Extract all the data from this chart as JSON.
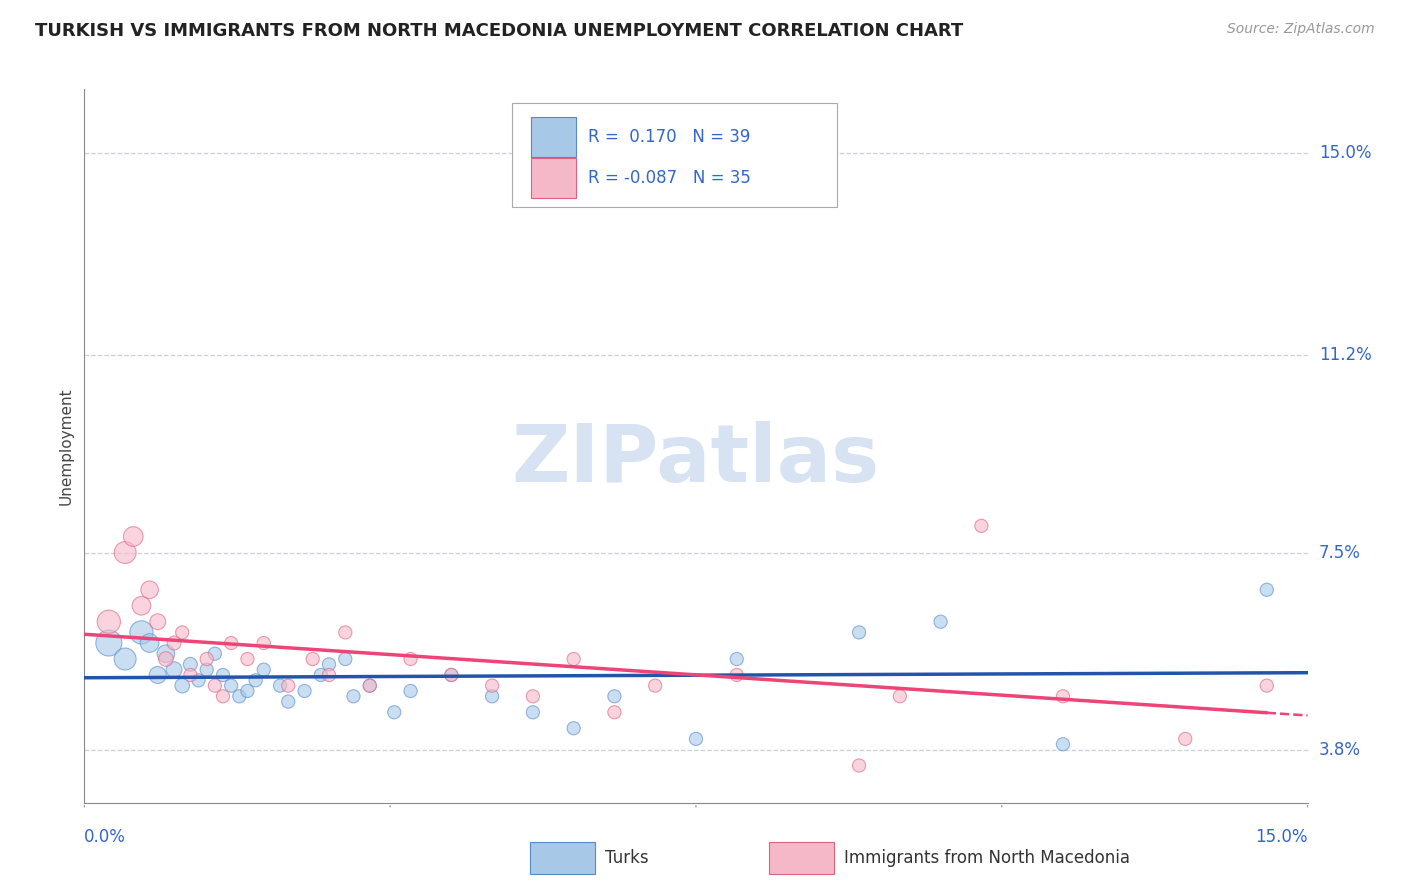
{
  "title": "TURKISH VS IMMIGRANTS FROM NORTH MACEDONIA UNEMPLOYMENT CORRELATION CHART",
  "source": "Source: ZipAtlas.com",
  "ylabel": "Unemployment",
  "y_tick_labels": [
    "3.8%",
    "7.5%",
    "11.2%",
    "15.0%"
  ],
  "y_tick_values": [
    3.8,
    7.5,
    11.2,
    15.0
  ],
  "xlim": [
    0.0,
    15.0
  ],
  "ylim": [
    2.8,
    16.2
  ],
  "legend_r_blue": " 0.170",
  "legend_n_blue": "39",
  "legend_r_pink": "-0.087",
  "legend_n_pink": "35",
  "blue_scatter_color": "#a8c8e8",
  "blue_edge_color": "#5588cc",
  "pink_scatter_color": "#f5b8c8",
  "pink_edge_color": "#e06080",
  "line_blue_color": "#2255aa",
  "line_pink_color": "#ee4477",
  "watermark_color": "#d0ddf0",
  "turks_scatter": [
    [
      0.3,
      5.8
    ],
    [
      0.5,
      5.5
    ],
    [
      0.7,
      6.0
    ],
    [
      0.8,
      5.8
    ],
    [
      0.9,
      5.2
    ],
    [
      1.0,
      5.6
    ],
    [
      1.1,
      5.3
    ],
    [
      1.2,
      5.0
    ],
    [
      1.3,
      5.4
    ],
    [
      1.4,
      5.1
    ],
    [
      1.5,
      5.3
    ],
    [
      1.6,
      5.6
    ],
    [
      1.7,
      5.2
    ],
    [
      1.8,
      5.0
    ],
    [
      1.9,
      4.8
    ],
    [
      2.0,
      4.9
    ],
    [
      2.1,
      5.1
    ],
    [
      2.2,
      5.3
    ],
    [
      2.4,
      5.0
    ],
    [
      2.5,
      4.7
    ],
    [
      2.7,
      4.9
    ],
    [
      2.9,
      5.2
    ],
    [
      3.0,
      5.4
    ],
    [
      3.2,
      5.5
    ],
    [
      3.3,
      4.8
    ],
    [
      3.5,
      5.0
    ],
    [
      3.8,
      4.5
    ],
    [
      4.0,
      4.9
    ],
    [
      4.5,
      5.2
    ],
    [
      5.0,
      4.8
    ],
    [
      5.5,
      4.5
    ],
    [
      6.0,
      4.2
    ],
    [
      6.5,
      4.8
    ],
    [
      7.5,
      4.0
    ],
    [
      8.0,
      5.5
    ],
    [
      9.5,
      6.0
    ],
    [
      10.5,
      6.2
    ],
    [
      12.0,
      3.9
    ],
    [
      14.5,
      6.8
    ]
  ],
  "turks_sizes": [
    350,
    250,
    280,
    180,
    150,
    160,
    130,
    110,
    100,
    90,
    90,
    90,
    90,
    90,
    90,
    90,
    90,
    90,
    90,
    90,
    90,
    90,
    90,
    90,
    90,
    90,
    90,
    90,
    90,
    90,
    90,
    90,
    90,
    90,
    90,
    90,
    90,
    90,
    90
  ],
  "nmacedonia_scatter": [
    [
      0.3,
      6.2
    ],
    [
      0.5,
      7.5
    ],
    [
      0.6,
      7.8
    ],
    [
      0.7,
      6.5
    ],
    [
      0.8,
      6.8
    ],
    [
      0.9,
      6.2
    ],
    [
      1.0,
      5.5
    ],
    [
      1.1,
      5.8
    ],
    [
      1.2,
      6.0
    ],
    [
      1.3,
      5.2
    ],
    [
      1.5,
      5.5
    ],
    [
      1.6,
      5.0
    ],
    [
      1.7,
      4.8
    ],
    [
      1.8,
      5.8
    ],
    [
      2.0,
      5.5
    ],
    [
      2.2,
      5.8
    ],
    [
      2.5,
      5.0
    ],
    [
      2.8,
      5.5
    ],
    [
      3.0,
      5.2
    ],
    [
      3.2,
      6.0
    ],
    [
      3.5,
      5.0
    ],
    [
      4.0,
      5.5
    ],
    [
      4.5,
      5.2
    ],
    [
      5.0,
      5.0
    ],
    [
      5.5,
      4.8
    ],
    [
      6.0,
      5.5
    ],
    [
      6.5,
      4.5
    ],
    [
      7.0,
      5.0
    ],
    [
      8.0,
      5.2
    ],
    [
      9.5,
      3.5
    ],
    [
      10.0,
      4.8
    ],
    [
      11.0,
      8.0
    ],
    [
      12.0,
      4.8
    ],
    [
      13.5,
      4.0
    ],
    [
      14.5,
      5.0
    ]
  ],
  "nmacedonia_sizes": [
    280,
    250,
    200,
    180,
    160,
    130,
    110,
    100,
    90,
    90,
    90,
    90,
    90,
    90,
    90,
    90,
    90,
    90,
    90,
    90,
    90,
    90,
    90,
    90,
    90,
    90,
    90,
    90,
    90,
    90,
    90,
    90,
    90,
    90,
    90
  ]
}
